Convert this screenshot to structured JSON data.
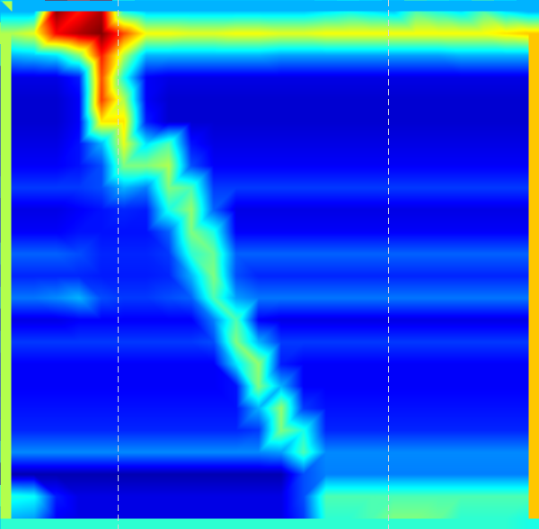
{
  "chart_data": {
    "type": "heatmap",
    "tick_labels": false,
    "xlim": [
      0,
      24
    ],
    "ylim": [
      0,
      24
    ],
    "zlim": [
      0,
      100
    ],
    "x_markers": [
      5.24,
      17.28
    ],
    "cells": [
      [
        30,
        30,
        98,
        85,
        95,
        40,
        32,
        32,
        32,
        32,
        32,
        32,
        32,
        32,
        35,
        38,
        35,
        32,
        45,
        40,
        35,
        45,
        35,
        30
      ],
      [
        55,
        60,
        88,
        95,
        100,
        80,
        62,
        62,
        60,
        60,
        62,
        62,
        60,
        60,
        62,
        62,
        62,
        62,
        62,
        62,
        62,
        62,
        65,
        68
      ],
      [
        30,
        32,
        35,
        50,
        85,
        55,
        30,
        30,
        30,
        30,
        30,
        30,
        28,
        28,
        28,
        28,
        28,
        28,
        28,
        28,
        30,
        30,
        30,
        30
      ],
      [
        10,
        10,
        10,
        15,
        80,
        40,
        12,
        10,
        10,
        10,
        10,
        10,
        10,
        10,
        10,
        10,
        10,
        10,
        10,
        10,
        10,
        10,
        10,
        10
      ],
      [
        8,
        8,
        8,
        12,
        82,
        55,
        12,
        8,
        8,
        8,
        8,
        8,
        8,
        8,
        8,
        8,
        8,
        8,
        8,
        8,
        8,
        8,
        8,
        8
      ],
      [
        8,
        8,
        8,
        12,
        65,
        65,
        15,
        8,
        8,
        8,
        8,
        8,
        8,
        8,
        8,
        8,
        8,
        8,
        8,
        8,
        8,
        8,
        8,
        8
      ],
      [
        10,
        10,
        10,
        14,
        30,
        60,
        35,
        45,
        14,
        10,
        10,
        10,
        10,
        10,
        10,
        10,
        10,
        10,
        10,
        10,
        10,
        10,
        10,
        10
      ],
      [
        12,
        12,
        12,
        14,
        20,
        50,
        50,
        55,
        20,
        12,
        12,
        12,
        12,
        12,
        12,
        12,
        12,
        12,
        12,
        12,
        12,
        12,
        12,
        12
      ],
      [
        18,
        18,
        18,
        18,
        20,
        30,
        25,
        50,
        45,
        18,
        18,
        18,
        18,
        18,
        18,
        18,
        18,
        18,
        18,
        18,
        18,
        18,
        18,
        18
      ],
      [
        10,
        10,
        10,
        12,
        14,
        16,
        15,
        40,
        52,
        22,
        10,
        10,
        10,
        10,
        10,
        10,
        10,
        10,
        10,
        10,
        10,
        10,
        10,
        10
      ],
      [
        12,
        12,
        12,
        14,
        14,
        14,
        14,
        22,
        50,
        40,
        12,
        12,
        12,
        12,
        12,
        12,
        12,
        12,
        12,
        12,
        12,
        12,
        12,
        12
      ],
      [
        22,
        22,
        22,
        20,
        16,
        16,
        16,
        18,
        42,
        48,
        22,
        22,
        22,
        22,
        22,
        22,
        22,
        22,
        22,
        22,
        22,
        22,
        22,
        22
      ],
      [
        16,
        16,
        16,
        16,
        15,
        15,
        15,
        16,
        30,
        50,
        20,
        16,
        16,
        16,
        16,
        16,
        16,
        16,
        16,
        16,
        16,
        16,
        16,
        16
      ],
      [
        24,
        24,
        26,
        30,
        20,
        18,
        18,
        20,
        22,
        45,
        28,
        24,
        24,
        24,
        24,
        24,
        24,
        24,
        24,
        24,
        24,
        24,
        24,
        24
      ],
      [
        10,
        10,
        10,
        12,
        12,
        12,
        12,
        12,
        12,
        25,
        45,
        12,
        10,
        10,
        10,
        10,
        10,
        10,
        10,
        10,
        10,
        10,
        10,
        10
      ],
      [
        18,
        18,
        18,
        18,
        18,
        18,
        18,
        18,
        18,
        20,
        50,
        30,
        18,
        18,
        18,
        18,
        18,
        18,
        18,
        18,
        18,
        18,
        18,
        18
      ],
      [
        12,
        12,
        12,
        12,
        12,
        12,
        12,
        12,
        12,
        12,
        35,
        52,
        15,
        12,
        12,
        12,
        12,
        12,
        12,
        12,
        12,
        12,
        12,
        12
      ],
      [
        12,
        12,
        12,
        12,
        12,
        12,
        12,
        12,
        12,
        12,
        14,
        50,
        30,
        12,
        12,
        12,
        12,
        12,
        12,
        12,
        12,
        12,
        12,
        12
      ],
      [
        14,
        14,
        14,
        14,
        14,
        14,
        14,
        14,
        14,
        14,
        14,
        30,
        52,
        18,
        14,
        14,
        14,
        14,
        14,
        14,
        14,
        14,
        14,
        14
      ],
      [
        16,
        16,
        16,
        16,
        16,
        16,
        16,
        16,
        16,
        16,
        16,
        18,
        50,
        40,
        16,
        16,
        16,
        16,
        16,
        16,
        16,
        16,
        16,
        16
      ],
      [
        26,
        26,
        26,
        26,
        26,
        26,
        26,
        26,
        26,
        26,
        26,
        26,
        28,
        45,
        26,
        26,
        26,
        26,
        26,
        26,
        26,
        26,
        26,
        26
      ],
      [
        5,
        5,
        5,
        5,
        5,
        5,
        5,
        5,
        5,
        5,
        5,
        5,
        5,
        20,
        25,
        25,
        25,
        25,
        25,
        25,
        25,
        25,
        25,
        25
      ],
      [
        40,
        38,
        15,
        10,
        10,
        10,
        10,
        10,
        10,
        10,
        10,
        10,
        10,
        20,
        45,
        45,
        45,
        45,
        45,
        45,
        45,
        45,
        45,
        45
      ],
      [
        30,
        28,
        12,
        10,
        10,
        10,
        10,
        10,
        10,
        10,
        10,
        10,
        10,
        18,
        42,
        42,
        45,
        50,
        50,
        48,
        42,
        42,
        42,
        40
      ]
    ]
  }
}
